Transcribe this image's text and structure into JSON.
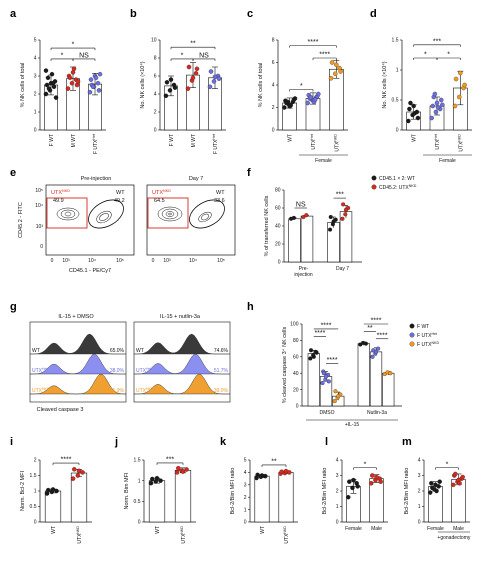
{
  "colors": {
    "black": "#1a1a1a",
    "red": "#d62a1e",
    "blue": "#6b6fe0",
    "orange": "#f29a20",
    "gray": "#6a6a6a",
    "hist_gray": "#3a3a3a",
    "hist_blue": "#8b8ff0",
    "hist_orange": "#f0a030"
  },
  "panels": {
    "a": "a",
    "b": "b",
    "c": "c",
    "d": "d",
    "e": "e",
    "f": "f",
    "g": "g",
    "h": "h",
    "i": "i",
    "j": "j",
    "k": "k",
    "l": "l",
    "m": "m"
  },
  "chart_data": [
    {
      "id": "a",
      "type": "bar",
      "ylabel": "% NK cells of total",
      "ylim": [
        0,
        5
      ],
      "yticks": [
        0,
        1,
        2,
        3,
        4,
        5
      ],
      "categories": [
        "F WT",
        "M WT",
        "F UTX"
      ],
      "category_sup": [
        "",
        "",
        "Het"
      ],
      "values": [
        2.5,
        2.85,
        2.55
      ],
      "errors": [
        0.55,
        0.65,
        0.6
      ],
      "point_colors": [
        "black",
        "red",
        "blue"
      ],
      "points": [
        [
          2.0,
          2.2,
          2.4,
          2.5,
          2.6,
          2.7,
          2.9,
          3.1,
          1.8,
          2.3,
          2.6,
          3.3
        ],
        [
          2.3,
          2.6,
          2.8,
          3.0,
          3.2,
          2.5,
          2.9,
          3.4,
          2.7
        ],
        [
          2.1,
          2.4,
          2.6,
          2.8,
          3.0,
          2.2,
          2.5,
          2.9,
          3.1,
          2.4
        ]
      ],
      "brackets": [
        {
          "from": 0,
          "to": 2,
          "label": "*",
          "level": 4.55
        },
        {
          "from": 0,
          "to": 1,
          "label": "*",
          "level": 3.95
        },
        {
          "from": 1,
          "to": 2,
          "label": "NS",
          "level": 3.95
        }
      ]
    },
    {
      "id": "b",
      "type": "bar",
      "ylabel": "No. NK cells (×10⁴)",
      "ylim": [
        0,
        10
      ],
      "yticks": [
        0,
        2,
        4,
        6,
        8,
        10
      ],
      "categories": [
        "F WT",
        "M WT",
        "F UTX"
      ],
      "category_sup": [
        "",
        "",
        "Het"
      ],
      "values": [
        4.9,
        6.1,
        5.8
      ],
      "errors": [
        1.1,
        1.4,
        1.2
      ],
      "point_colors": [
        "black",
        "red",
        "blue"
      ],
      "points": [
        [
          3.8,
          4.4,
          5.0,
          5.3,
          5.6,
          4.7
        ],
        [
          4.6,
          5.5,
          6.3,
          7.0,
          5.8,
          6.8
        ],
        [
          4.8,
          5.4,
          6.0,
          6.5,
          5.9,
          5.7
        ]
      ],
      "brackets": [
        {
          "from": 0,
          "to": 2,
          "label": "**",
          "level": 9.2
        },
        {
          "from": 0,
          "to": 1,
          "label": "*",
          "level": 7.9
        },
        {
          "from": 1,
          "to": 2,
          "label": "NS",
          "level": 7.9
        }
      ]
    },
    {
      "id": "c",
      "type": "bar",
      "ylabel": "% NK cells of total",
      "ylim": [
        0,
        8
      ],
      "yticks": [
        0,
        2,
        4,
        6,
        8
      ],
      "categories": [
        "WT",
        "UTX",
        "UTX"
      ],
      "category_sup": [
        "",
        "Het",
        "NKD"
      ],
      "group_label": "Female",
      "values": [
        2.4,
        2.8,
        5.4
      ],
      "errors": [
        0.45,
        0.5,
        0.8
      ],
      "point_colors": [
        "black",
        "blue",
        "orange"
      ],
      "points": [
        [
          2.0,
          2.3,
          2.5,
          2.6,
          2.1,
          2.7,
          2.4,
          2.2,
          2.8,
          2.5
        ],
        [
          2.4,
          2.7,
          2.9,
          3.1,
          2.6,
          3.0,
          2.8,
          2.5,
          3.2,
          2.9,
          2.7
        ],
        [
          4.6,
          5.0,
          5.5,
          6.0,
          5.8,
          5.2
        ]
      ],
      "brackets": [
        {
          "from": 0,
          "to": 2,
          "label": "****",
          "level": 7.5
        },
        {
          "from": 1,
          "to": 2,
          "label": "****",
          "level": 6.4
        },
        {
          "from": 0,
          "to": 1,
          "label": "*",
          "level": 3.6
        }
      ]
    },
    {
      "id": "d",
      "type": "bar",
      "ylabel": "No. NK cells (×10⁴)",
      "ylim": [
        0,
        1.5
      ],
      "yticks": [
        0,
        0.5,
        1.0,
        1.5
      ],
      "categories": [
        "WT",
        "UTX",
        "UTX"
      ],
      "category_sup": [
        "",
        "Het",
        "NKD"
      ],
      "group_label": "Female",
      "values": [
        0.3,
        0.4,
        0.7
      ],
      "errors": [
        0.12,
        0.15,
        0.28
      ],
      "point_colors": [
        "black",
        "blue",
        "orange"
      ],
      "points": [
        [
          0.15,
          0.25,
          0.3,
          0.35,
          0.4,
          0.2,
          0.45,
          0.28
        ],
        [
          0.2,
          0.3,
          0.35,
          0.4,
          0.45,
          0.5,
          0.55,
          0.38,
          0.42,
          0.6
        ],
        [
          0.4,
          0.55,
          0.7,
          0.85,
          0.95,
          0.75
        ]
      ],
      "brackets": [
        {
          "from": 0,
          "to": 2,
          "label": "***",
          "level": 1.42
        },
        {
          "from": 0,
          "to": 1,
          "label": "*",
          "level": 1.2
        },
        {
          "from": 1,
          "to": 2,
          "label": "*",
          "level": 1.2
        }
      ]
    },
    {
      "id": "f",
      "type": "bar",
      "ylabel": "% of transferred NK cells",
      "ylim": [
        0,
        80
      ],
      "yticks": [
        0,
        20,
        40,
        60,
        80
      ],
      "categories": [
        "Pre-injection",
        "Day 7"
      ],
      "legend": [
        {
          "label": "CD45.1 × 2: WT",
          "color": "black"
        },
        {
          "label": "CD45.2: UTX",
          "sup": "NKD",
          "color": "red"
        }
      ],
      "series": [
        {
          "name": "CD45.1 × 2: WT",
          "values": [
            48,
            44
          ],
          "errors": [
            1,
            6
          ],
          "color": "black",
          "points": [
            [
              48,
              49
            ],
            [
              36,
              42,
              47,
              50,
              45
            ]
          ]
        },
        {
          "name": "CD45.2: UTX",
          "values": [
            51,
            56
          ],
          "errors": [
            1,
            7
          ],
          "color": "red",
          "points": [
            [
              50,
              52
            ],
            [
              48,
              53,
              60,
              64,
              58
            ]
          ]
        }
      ],
      "brackets": [
        {
          "group": 0,
          "label": "NS",
          "level": 60
        },
        {
          "group": 1,
          "label": "***",
          "level": 71
        }
      ]
    },
    {
      "id": "h",
      "type": "bar",
      "ylabel": "% cleaved caspase 3⁺ NK cells",
      "ylim": [
        0,
        100
      ],
      "yticks": [
        0,
        20,
        40,
        60,
        80,
        100
      ],
      "categories": [
        "DMSO",
        "Nutlin-3a"
      ],
      "group_label": "+IL-15",
      "legend": [
        {
          "label": "F WT",
          "color": "black"
        },
        {
          "label": "F UTX",
          "sup": "Het",
          "color": "blue"
        },
        {
          "label": "F UTX",
          "sup": "NKD",
          "color": "orange"
        }
      ],
      "series": [
        {
          "name": "F WT",
          "values": [
            64,
            76
          ],
          "errors": [
            4,
            2
          ],
          "color": "black",
          "points": [
            [
              58,
              62,
              66,
              68,
              60,
              65
            ],
            [
              75,
              77,
              76
            ]
          ]
        },
        {
          "name": "F UTX",
          "values": [
            36,
            66
          ],
          "errors": [
            6,
            5
          ],
          "color": "blue",
          "points": [
            [
              28,
              32,
              38,
              42,
              36,
              30,
              40
            ],
            [
              60,
              64,
              70,
              68,
              66
            ]
          ]
        },
        {
          "name": "F UTX",
          "values": [
            12,
            40
          ],
          "errors": [
            5,
            2
          ],
          "color": "orange",
          "points": [
            [
              6,
              10,
              14,
              18,
              12
            ],
            [
              39,
              41,
              40
            ]
          ]
        }
      ],
      "brackets": [
        {
          "g": 0,
          "a": 0,
          "b": 2,
          "label": "****",
          "level": 94
        },
        {
          "g": 0,
          "a": 0,
          "b": 1,
          "label": "****",
          "level": 85
        },
        {
          "g": 0,
          "a": 1,
          "b": 2,
          "label": "****",
          "level": 52
        },
        {
          "g": 1,
          "a": 0,
          "b": 2,
          "label": "****",
          "level": 100
        },
        {
          "g": 1,
          "a": 0,
          "b": 1,
          "label": "**",
          "level": 91
        },
        {
          "g": 1,
          "a": 1,
          "b": 2,
          "label": "****",
          "level": 82
        }
      ]
    },
    {
      "id": "i",
      "type": "bar",
      "ylabel": "Norm. Bcl-2 MFI",
      "ylim": [
        0,
        2.0
      ],
      "yticks": [
        0,
        0.5,
        1.0,
        1.5,
        2.0
      ],
      "categories": [
        "WT",
        "UTX"
      ],
      "category_sup": [
        "",
        "NKD"
      ],
      "values": [
        1.0,
        1.58
      ],
      "errors": [
        0.06,
        0.12
      ],
      "point_colors": [
        "black",
        "red"
      ],
      "points": [
        [
          0.92,
          0.97,
          1.0,
          1.03,
          1.05
        ],
        [
          1.4,
          1.5,
          1.6,
          1.7,
          1.65
        ]
      ],
      "brackets": [
        {
          "from": 0,
          "to": 1,
          "label": "****",
          "level": 1.9
        }
      ]
    },
    {
      "id": "j",
      "type": "bar",
      "ylabel": "Norm. Bim MFI",
      "ylim": [
        0,
        1.5
      ],
      "yticks": [
        0,
        0.5,
        1.0,
        1.5
      ],
      "categories": [
        "WT",
        "UTX"
      ],
      "category_sup": [
        "",
        "NKD"
      ],
      "values": [
        1.0,
        1.25
      ],
      "errors": [
        0.06,
        0.06
      ],
      "point_colors": [
        "black",
        "red"
      ],
      "points": [
        [
          0.94,
          0.98,
          1.0,
          1.04,
          1.06
        ],
        [
          1.2,
          1.24,
          1.27,
          1.3,
          1.22
        ]
      ],
      "brackets": [
        {
          "from": 0,
          "to": 1,
          "label": "***",
          "level": 1.43
        }
      ]
    },
    {
      "id": "k",
      "type": "bar",
      "ylabel": "Bcl-2/Bim MFI ratio",
      "ylim": [
        0,
        5
      ],
      "yticks": [
        0,
        1,
        2,
        3,
        4,
        5
      ],
      "categories": [
        "WT",
        "UTX"
      ],
      "category_sup": [
        "",
        "NKD"
      ],
      "values": [
        3.7,
        4.0
      ],
      "errors": [
        0.12,
        0.1
      ],
      "point_colors": [
        "black",
        "red"
      ],
      "points": [
        [
          3.55,
          3.65,
          3.7,
          3.8,
          3.75
        ],
        [
          3.9,
          3.95,
          4.0,
          4.05,
          4.1
        ]
      ],
      "brackets": [
        {
          "from": 0,
          "to": 1,
          "label": "**",
          "level": 4.6
        }
      ]
    },
    {
      "id": "l",
      "type": "bar",
      "ylabel": "Bcl-2/Bim MFI ratio",
      "ylim": [
        0,
        4
      ],
      "yticks": [
        0,
        1,
        2,
        3,
        4
      ],
      "categories": [
        "Female",
        "Male"
      ],
      "values": [
        2.3,
        2.8
      ],
      "errors": [
        0.45,
        0.25
      ],
      "point_colors": [
        "black",
        "red"
      ],
      "points": [
        [
          1.6,
          2.2,
          2.5,
          2.6,
          2.7,
          2.3
        ],
        [
          2.5,
          2.7,
          2.8,
          3.0,
          2.9,
          2.6
        ]
      ],
      "brackets": [
        {
          "from": 0,
          "to": 1,
          "label": "*",
          "level": 3.5
        }
      ]
    },
    {
      "id": "m",
      "type": "bar",
      "ylabel": "Bcl-2/Bim MFI ratio",
      "ylim": [
        0,
        4
      ],
      "yticks": [
        0,
        1,
        2,
        3,
        4
      ],
      "categories": [
        "Female",
        "Male"
      ],
      "group_label": "+gonadectomy",
      "values": [
        2.3,
        2.75
      ],
      "errors": [
        0.3,
        0.35
      ],
      "point_colors": [
        "black",
        "red"
      ],
      "points": [
        [
          1.9,
          2.1,
          2.3,
          2.5,
          2.4,
          2.6,
          2.2,
          2.0
        ],
        [
          2.4,
          2.6,
          2.8,
          3.0,
          2.7,
          2.9,
          3.1,
          2.5
        ]
      ],
      "brackets": [
        {
          "from": 0,
          "to": 1,
          "label": "*",
          "level": 3.5
        }
      ]
    }
  ],
  "flow": {
    "pre_title": "Pre-injection",
    "day7_title": "Day 7",
    "ylabel": "CD45.2 - FITC",
    "xlabel": "CD45.1 - PE/Cy7",
    "yticks": [
      "10⁵",
      "10⁴",
      "10³",
      "0"
    ],
    "xticks": [
      "0",
      "10³",
      "10⁴",
      "10⁵"
    ],
    "pre_utx_label": "UTX",
    "pre_utx_sup": "NKD",
    "pre_utx_value": "49.9",
    "pre_wt_label": "WT",
    "pre_wt_value": "49.2",
    "day7_utx_label": "UTX",
    "day7_utx_sup": "NKD",
    "day7_utx_value": "64.5",
    "day7_wt_label": "WT",
    "day7_wt_value": "33.6"
  },
  "hist": {
    "dmso_title": "IL-15 + DMSO",
    "nutlin_title": "IL-15 + nutlin-3a",
    "xlabel": "Cleaved caspase 3",
    "rows": [
      {
        "label": "WT",
        "sup": "",
        "dmso": "65.0%",
        "nutlin": "74.6%",
        "color_key": "hist_gray",
        "text_key": "black"
      },
      {
        "label": "UTX",
        "sup": "Het",
        "dmso": "38.0%",
        "nutlin": "51.7%",
        "color_key": "hist_blue",
        "text_key": "blue"
      },
      {
        "label": "UTX",
        "sup": "NKD",
        "dmso": "11.9%",
        "nutlin": "39.0%",
        "color_key": "hist_orange",
        "text_key": "orange"
      }
    ]
  }
}
